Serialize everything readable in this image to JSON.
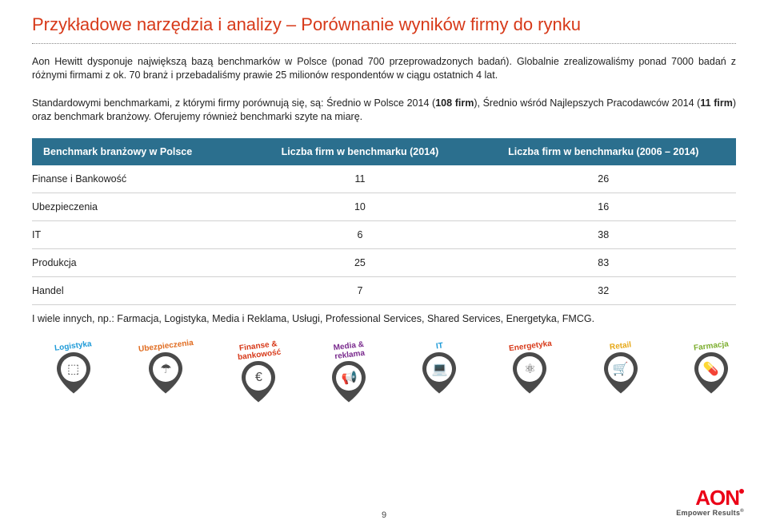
{
  "colors": {
    "title": "#d73919",
    "table_header_bg": "#2b6f8e",
    "icon_pin": "#4a4a4a",
    "logo_red": "#eb0017",
    "tagline": "#4a4a4a"
  },
  "title": "Przykładowe narzędzia i analizy – Porównanie wyników firmy do rynku",
  "intro": {
    "p1a": "Aon Hewitt dysponuje największą bazą benchmarków w Polsce (ponad 700 przeprowadzonych badań). Globalnie zrealizowaliśmy ponad 7000 badań z różnymi firmami z ok. 70 branż i przebadaliśmy prawie 25 milionów respondentów w ciągu ostatnich 4 lat.",
    "p2a": "Standardowymi benchmarkami, z którymi firmy porównują się, są: Średnio w Polsce 2014 (",
    "p2b": "108 firm",
    "p2c": "), Średnio wśród Najlepszych Pracodawców 2014 (",
    "p2d": "11 firm",
    "p2e": ") oraz benchmark branżowy. Oferujemy również benchmarki szyte na miarę."
  },
  "table": {
    "headers": [
      "Benchmark branżowy w Polsce",
      "Liczba firm w benchmarku (2014)",
      "Liczba firm w benchmarku (2006 – 2014)"
    ],
    "rows": [
      {
        "label": "Finanse i Bankowość",
        "c2014": "11",
        "cAll": "26"
      },
      {
        "label": "Ubezpieczenia",
        "c2014": "10",
        "cAll": "16"
      },
      {
        "label": "IT",
        "c2014": "6",
        "cAll": "38"
      },
      {
        "label": "Produkcja",
        "c2014": "25",
        "cAll": "83"
      },
      {
        "label": "Handel",
        "c2014": "7",
        "cAll": "32"
      }
    ]
  },
  "footnote": "I wiele innych, np.: Farmacja, Logistyka, Media i Reklama, Usługi, Professional Services, Shared Services, Energetyka, FMCG.",
  "icons": [
    {
      "label": "Logistyka",
      "color": "#1f9bd8",
      "glyph": "⬚"
    },
    {
      "label": "Ubezpieczenia",
      "color": "#e06b1f",
      "glyph": "☂"
    },
    {
      "label": "Finanse & bankowość",
      "color": "#d73919",
      "glyph": "€"
    },
    {
      "label": "Media & reklama",
      "color": "#7a2b8e",
      "glyph": "📢"
    },
    {
      "label": "IT",
      "color": "#1f9bd8",
      "glyph": "💻"
    },
    {
      "label": "Energetyka",
      "color": "#d73919",
      "glyph": "⚛"
    },
    {
      "label": "Retail",
      "color": "#e6a817",
      "glyph": "🛒"
    },
    {
      "label": "Farmacja",
      "color": "#7cae2e",
      "glyph": "💊"
    }
  ],
  "logo": {
    "name": "AON",
    "tagline": "Empower Results"
  },
  "page_number": "9"
}
